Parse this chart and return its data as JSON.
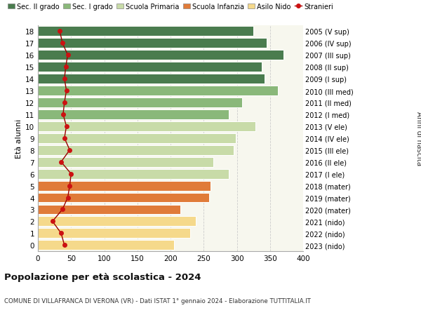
{
  "ages": [
    0,
    1,
    2,
    3,
    4,
    5,
    6,
    7,
    8,
    9,
    10,
    11,
    12,
    13,
    14,
    15,
    16,
    17,
    18
  ],
  "bar_values": [
    205,
    230,
    238,
    215,
    258,
    260,
    288,
    265,
    295,
    298,
    328,
    288,
    308,
    362,
    342,
    338,
    370,
    345,
    325
  ],
  "right_labels": [
    "2023 (nido)",
    "2022 (nido)",
    "2021 (nido)",
    "2020 (mater)",
    "2019 (mater)",
    "2018 (mater)",
    "2017 (I ele)",
    "2016 (II ele)",
    "2015 (III ele)",
    "2014 (IV ele)",
    "2013 (V ele)",
    "2012 (I med)",
    "2011 (II med)",
    "2010 (III med)",
    "2009 (I sup)",
    "2008 (II sup)",
    "2007 (III sup)",
    "2006 (IV sup)",
    "2005 (V sup)"
  ],
  "stranieri_values": [
    40,
    35,
    22,
    37,
    45,
    48,
    50,
    35,
    48,
    40,
    43,
    38,
    40,
    43,
    40,
    42,
    45,
    37,
    33
  ],
  "bar_colors": [
    "#f5d98b",
    "#f5d98b",
    "#f5d98b",
    "#e07b39",
    "#e07b39",
    "#e07b39",
    "#c8dba8",
    "#c8dba8",
    "#c8dba8",
    "#c8dba8",
    "#c8dba8",
    "#8ab87a",
    "#8ab87a",
    "#8ab87a",
    "#4a7c4e",
    "#4a7c4e",
    "#4a7c4e",
    "#4a7c4e",
    "#4a7c4e"
  ],
  "legend_labels": [
    "Sec. II grado",
    "Sec. I grado",
    "Scuola Primaria",
    "Scuola Infanzia",
    "Asilo Nido",
    "Stranieri"
  ],
  "legend_colors": [
    "#4a7c4e",
    "#8ab87a",
    "#c8dba8",
    "#e07b39",
    "#f5d98b",
    "#cc0000"
  ],
  "ylabel_left": "Età alunni",
  "ylabel_right": "Anni di nascita",
  "title_bold": "Popolazione per età scolastica - 2024",
  "subtitle": "COMUNE DI VILLAFRANCA DI VERONA (VR) - Dati ISTAT 1° gennaio 2024 - Elaborazione TUTTITALIA.IT",
  "xlim": [
    0,
    400
  ],
  "xticks": [
    0,
    50,
    100,
    150,
    200,
    250,
    300,
    350,
    400
  ],
  "bg_color": "#ffffff",
  "plot_bg_color": "#f7f7ee",
  "grid_color": "#cccccc",
  "stranieri_line_color": "#990000",
  "stranieri_dot_color": "#cc1111"
}
